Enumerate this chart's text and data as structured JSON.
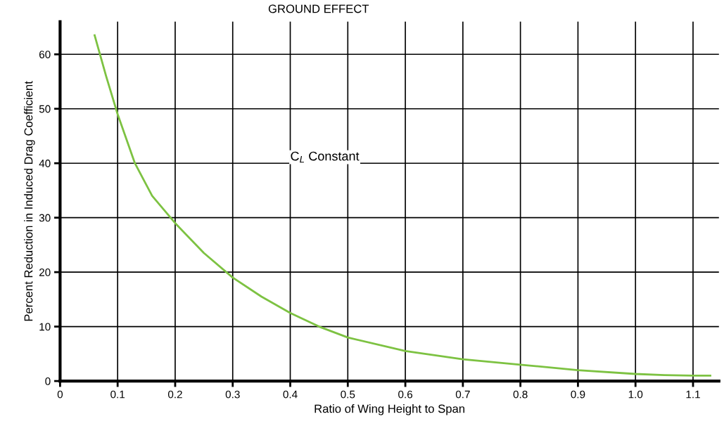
{
  "chart_data": {
    "type": "line",
    "title": "GROUND EFFECT",
    "xlabel": "Ratio of Wing Height to Span",
    "ylabel": "Percent Reduction in Induced Drag Coefficient",
    "annotations": [
      "C$_{L}$ Constant"
    ],
    "series": [
      {
        "color": "#7dc242",
        "x": [
          0.06,
          0.08,
          0.1,
          0.13,
          0.16,
          0.2,
          0.25,
          0.3,
          0.35,
          0.4,
          0.45,
          0.5,
          0.6,
          0.7,
          0.8,
          0.9,
          1.0,
          1.05,
          1.1,
          1.13
        ],
        "values": [
          63.5,
          56,
          49,
          40,
          34,
          29,
          23.5,
          19,
          15.5,
          12.5,
          10,
          8,
          5.5,
          4,
          3,
          2,
          1.3,
          1.1,
          1,
          1
        ]
      }
    ],
    "xlim": [
      0,
      1.145
    ],
    "ylim": [
      0,
      66
    ],
    "xticks": [
      0,
      0.1,
      0.2,
      0.3,
      0.4,
      0.5,
      0.6,
      0.7,
      0.8,
      0.9,
      {
        "value": 1.0,
        "label": "1.0"
      },
      1.1
    ],
    "yticks": [
      0,
      10,
      20,
      30,
      40,
      50,
      60
    ],
    "grid": true,
    "line_style": "solid"
  }
}
